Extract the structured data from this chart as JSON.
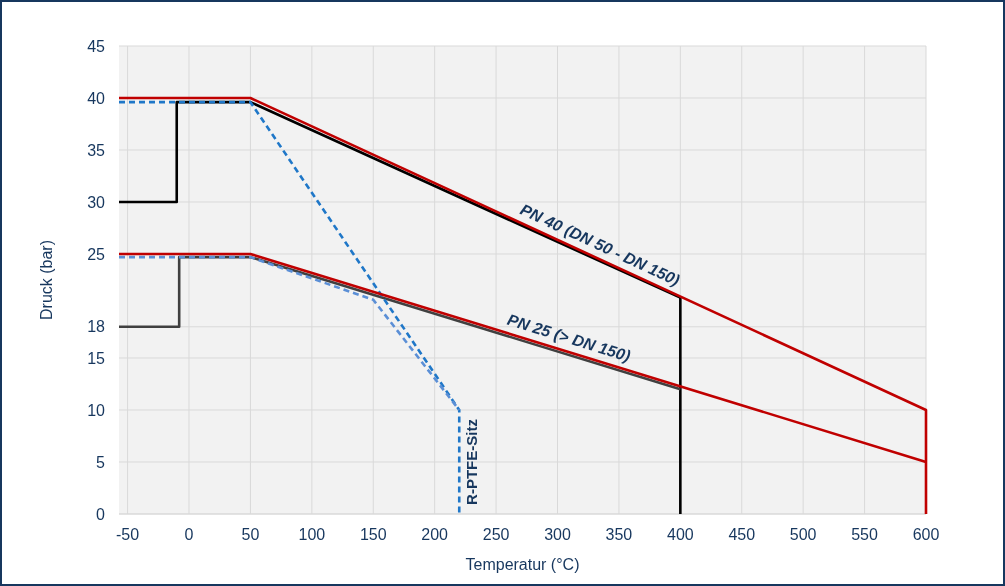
{
  "chart_data": {
    "type": "line",
    "xlabel": "Temperatur (°C)",
    "ylabel": "Druck (bar)",
    "xlim": [
      -57,
      600
    ],
    "xticks": [
      -50,
      0,
      50,
      100,
      150,
      200,
      250,
      300,
      350,
      400,
      450,
      500,
      550,
      600
    ],
    "ylim": [
      0,
      45
    ],
    "yticks": [
      0,
      5,
      10,
      15,
      18,
      25,
      30,
      35,
      40,
      45
    ],
    "grid": true,
    "line_style": "solid",
    "series": [
      {
        "color": "#000000",
        "x": [
          -57,
          -10,
          -10,
          50,
          400,
          400
        ],
        "values": [
          30,
          30,
          39.6,
          39.6,
          20.8,
          0
        ]
      },
      {
        "color": "#404040",
        "x": [
          -57,
          -8,
          -8,
          50,
          400
        ],
        "values": [
          18,
          18,
          24.7,
          24.7,
          12
        ]
      },
      {
        "color": "#1f77c8",
        "line_style": "dashed",
        "x": [
          -57,
          50,
          220,
          220
        ],
        "values": [
          39.6,
          39.6,
          10,
          0
        ]
      },
      {
        "color": "#5b8fd6",
        "line_style": "dashed",
        "x": [
          -57,
          50,
          150,
          220
        ],
        "values": [
          24.7,
          24.7,
          20.6,
          10
        ]
      },
      {
        "color": "#c00000",
        "x": [
          -57,
          50,
          600,
          600
        ],
        "values": [
          40,
          40,
          10,
          0
        ]
      },
      {
        "color": "#c00000",
        "x": [
          -57,
          50,
          600
        ],
        "values": [
          25,
          25,
          5
        ]
      }
    ],
    "annotations": [
      {
        "text": "PN 40 (DN 50 - DN 150)",
        "x": 330,
        "y": 24.7
      },
      {
        "text": "PN 25 (> DN 150)",
        "x": 306,
        "y": 15.7
      },
      {
        "text": "R-PTFE-Sitz",
        "x": 220,
        "y": 5
      }
    ]
  }
}
